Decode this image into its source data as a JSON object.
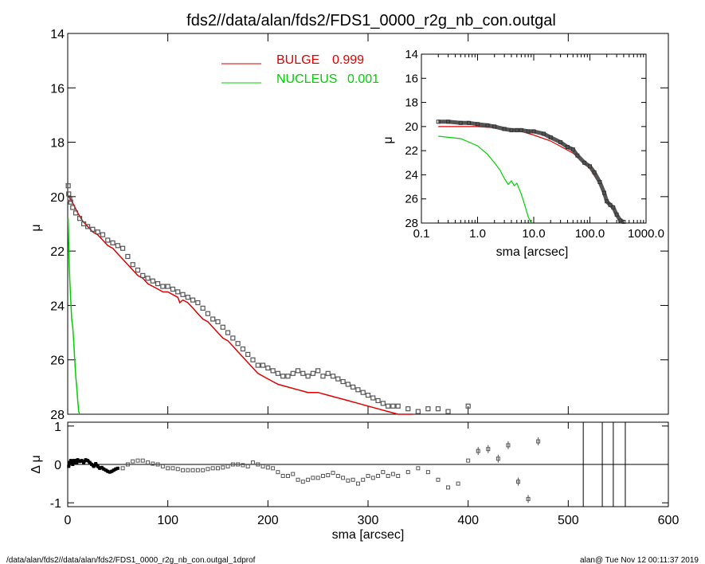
{
  "title": "fds2//data/alan/fds2/FDS1_0000_r2g_nb_con.outgal",
  "footer_left": "/data/alan/fds2//data/alan/fds2/FDS1_0000_r2g_nb_con.outgal_1dprof",
  "footer_right": "alan@  Tue Nov 12 00:11:37 2019",
  "colors": {
    "bulge": "#e00000",
    "nucleus": "#00d000",
    "data": "#555555",
    "axes": "#000000"
  },
  "chart_data": [
    {
      "id": "main",
      "type": "line",
      "ylabel": "μ",
      "xlim": [
        0,
        600
      ],
      "ylim": [
        28,
        14
      ],
      "yticks": [
        "14",
        "16",
        "18",
        "20",
        "22",
        "24",
        "26",
        "28"
      ],
      "legend": [
        {
          "name": "BULGE",
          "value": "0.999",
          "color": "#e00000"
        },
        {
          "name": "NUCLEUS",
          "value": "0.001",
          "color": "#00d000"
        }
      ],
      "legend_placement": "top-center",
      "series": [
        {
          "name": "BULGE",
          "style": "line",
          "x": [
            1,
            3,
            6,
            10,
            15,
            20,
            25,
            30,
            35,
            40,
            45,
            50,
            55,
            60,
            65,
            70,
            75,
            80,
            85,
            90,
            95,
            100,
            105,
            110,
            112,
            115,
            120,
            125,
            130,
            135,
            140,
            145,
            150,
            155,
            160,
            165,
            170,
            175,
            180,
            185,
            190,
            200,
            210,
            220,
            230,
            240,
            250,
            260,
            270,
            280,
            290,
            300,
            310,
            320,
            330,
            340,
            345
          ],
          "values": [
            20.0,
            20.1,
            20.3,
            20.6,
            20.9,
            21.1,
            21.3,
            21.4,
            21.6,
            21.8,
            21.9,
            22.1,
            22.3,
            22.5,
            22.7,
            22.9,
            23.0,
            23.2,
            23.3,
            23.4,
            23.5,
            23.5,
            23.6,
            23.7,
            23.9,
            23.8,
            23.9,
            24.1,
            24.3,
            24.5,
            24.6,
            24.8,
            25.0,
            25.2,
            25.3,
            25.5,
            25.7,
            25.9,
            26.1,
            26.3,
            26.5,
            26.7,
            26.9,
            27.0,
            27.1,
            27.2,
            27.2,
            27.3,
            27.4,
            27.5,
            27.6,
            27.7,
            27.8,
            27.9,
            28.0,
            28.0,
            28.0
          ]
        },
        {
          "name": "NUCLEUS",
          "style": "line",
          "x": [
            0.5,
            1,
            1.5,
            2,
            3,
            4,
            5,
            6,
            7,
            8,
            9,
            10,
            11,
            12
          ],
          "values": [
            20.8,
            21.8,
            22.5,
            23.0,
            23.8,
            24.5,
            24.8,
            25.3,
            26.0,
            26.6,
            27.0,
            27.5,
            27.9,
            28.0
          ]
        },
        {
          "name": "data",
          "style": "squares",
          "x": [
            0.5,
            1,
            2,
            3,
            5,
            8,
            12,
            16,
            20,
            25,
            30,
            35,
            40,
            45,
            50,
            55,
            60,
            65,
            70,
            75,
            80,
            85,
            90,
            95,
            100,
            105,
            110,
            115,
            120,
            125,
            130,
            135,
            140,
            145,
            150,
            155,
            160,
            165,
            170,
            175,
            180,
            185,
            190,
            195,
            200,
            205,
            210,
            215,
            220,
            225,
            230,
            235,
            240,
            245,
            250,
            255,
            260,
            265,
            270,
            275,
            280,
            285,
            290,
            295,
            300,
            305,
            310,
            315,
            320,
            325,
            330,
            340,
            350,
            360,
            370,
            380,
            400
          ],
          "values": [
            19.6,
            19.9,
            20.1,
            20.2,
            20.4,
            20.6,
            20.8,
            21.0,
            21.1,
            21.2,
            21.3,
            21.4,
            21.6,
            21.7,
            21.8,
            21.9,
            22.2,
            22.5,
            22.7,
            22.9,
            23.0,
            23.1,
            23.2,
            23.3,
            23.3,
            23.4,
            23.5,
            23.6,
            23.7,
            23.8,
            23.9,
            24.1,
            24.3,
            24.5,
            24.6,
            24.8,
            25.0,
            25.2,
            25.4,
            25.6,
            25.8,
            26.0,
            26.2,
            26.2,
            26.3,
            26.4,
            26.5,
            26.6,
            26.6,
            26.5,
            26.4,
            26.5,
            26.6,
            26.5,
            26.4,
            26.6,
            26.5,
            26.6,
            26.7,
            26.8,
            26.9,
            27.0,
            27.1,
            27.2,
            27.3,
            27.4,
            27.5,
            27.6,
            27.7,
            27.7,
            27.7,
            27.8,
            27.9,
            27.8,
            27.8,
            27.9,
            27.7
          ]
        }
      ]
    },
    {
      "id": "inset",
      "type": "line",
      "xscale": "log",
      "xlabel": "sma [arcsec]",
      "ylabel": "μ",
      "xlim": [
        0.1,
        1000
      ],
      "ylim": [
        28,
        14
      ],
      "xticks": [
        "0.1",
        "1.0",
        "10.0",
        "100.0",
        "1000.0"
      ],
      "yticks": [
        "14",
        "16",
        "18",
        "20",
        "22",
        "24",
        "26",
        "28"
      ],
      "series": [
        {
          "name": "BULGE",
          "x": [
            0.2,
            0.5,
            1,
            2,
            5,
            10,
            20,
            50,
            100,
            150,
            200,
            300,
            350
          ],
          "values": [
            20.0,
            20.0,
            20.0,
            20.1,
            20.3,
            20.7,
            21.2,
            22.2,
            23.5,
            24.8,
            26.0,
            27.3,
            28.0
          ]
        },
        {
          "name": "NUCLEUS",
          "x": [
            0.2,
            0.5,
            1,
            1.5,
            2,
            2.5,
            3,
            3.5,
            4,
            4.5,
            5,
            6,
            7,
            8,
            9
          ],
          "values": [
            20.8,
            21.0,
            21.6,
            22.3,
            23.0,
            23.6,
            24.3,
            24.8,
            24.5,
            24.9,
            24.7,
            25.6,
            26.6,
            27.5,
            28.0
          ]
        },
        {
          "name": "data",
          "x": [
            0.2,
            0.3,
            0.5,
            0.7,
            1,
            1.5,
            2,
            3,
            4,
            5,
            6,
            8,
            10,
            15,
            20,
            30,
            40,
            50,
            60,
            80,
            100,
            120,
            150,
            180,
            200,
            230,
            260,
            300,
            350,
            400
          ],
          "values": [
            19.6,
            19.6,
            19.7,
            19.7,
            19.8,
            19.9,
            20.0,
            20.2,
            20.3,
            20.3,
            20.3,
            20.4,
            20.4,
            20.6,
            20.9,
            21.3,
            21.7,
            21.9,
            22.4,
            23.0,
            23.3,
            23.8,
            24.6,
            25.5,
            26.2,
            26.5,
            26.7,
            27.3,
            27.8,
            27.9
          ]
        }
      ]
    },
    {
      "id": "residual",
      "type": "scatter",
      "xlabel": "sma [arcsec]",
      "ylabel": "Δ μ",
      "xlim": [
        0,
        600
      ],
      "ylim": [
        -1.1,
        1.1
      ],
      "xticks": [
        "0",
        "100",
        "200",
        "300",
        "400",
        "500",
        "600"
      ],
      "yticks": [
        "1",
        "0",
        "-1"
      ],
      "zero_line": true,
      "vertical_lines_x": [
        515,
        534,
        545,
        557
      ],
      "series": [
        {
          "name": "residual-dense",
          "style": "filled",
          "x": [
            1,
            2,
            3,
            4,
            5,
            6,
            7,
            8,
            9,
            10,
            12,
            14,
            16,
            18,
            20,
            22,
            24,
            26,
            28,
            30,
            32,
            34,
            36,
            38,
            40,
            42,
            44,
            46,
            48,
            50
          ],
          "values": [
            -0.05,
            0.05,
            0.1,
            0.05,
            0.0,
            0.1,
            0.05,
            0.1,
            0.05,
            0.12,
            0.08,
            0.1,
            0.05,
            0.12,
            0.1,
            0.05,
            0.0,
            -0.05,
            0.02,
            -0.05,
            -0.1,
            -0.08,
            -0.12,
            -0.15,
            -0.18,
            -0.2,
            -0.18,
            -0.15,
            -0.12,
            -0.1
          ]
        },
        {
          "name": "residual-sparse",
          "style": "squares",
          "x": [
            55,
            60,
            65,
            70,
            75,
            80,
            85,
            90,
            95,
            100,
            105,
            110,
            115,
            120,
            125,
            130,
            135,
            140,
            145,
            150,
            155,
            160,
            165,
            170,
            175,
            180,
            185,
            190,
            195,
            200,
            205,
            210,
            215,
            220,
            225,
            230,
            235,
            240,
            245,
            250,
            255,
            260,
            265,
            270,
            275,
            280,
            285,
            290,
            295,
            300,
            305,
            310,
            315,
            320,
            325,
            330,
            340,
            350,
            360,
            370,
            380,
            390,
            400,
            410,
            420,
            430,
            440,
            450,
            460,
            470
          ],
          "values": [
            -0.1,
            0.0,
            0.08,
            0.1,
            0.1,
            0.05,
            0.02,
            0.0,
            -0.05,
            -0.1,
            -0.1,
            -0.12,
            -0.15,
            -0.15,
            -0.15,
            -0.15,
            -0.15,
            -0.12,
            -0.1,
            -0.1,
            -0.08,
            -0.05,
            0.0,
            0.0,
            -0.02,
            -0.05,
            0.05,
            0.0,
            -0.05,
            -0.08,
            -0.1,
            -0.2,
            -0.3,
            -0.3,
            -0.25,
            -0.4,
            -0.45,
            -0.4,
            -0.35,
            -0.35,
            -0.3,
            -0.28,
            -0.22,
            -0.3,
            -0.35,
            -0.42,
            -0.4,
            -0.5,
            -0.4,
            -0.3,
            -0.35,
            -0.3,
            -0.2,
            -0.3,
            -0.25,
            -0.3,
            -0.2,
            -0.1,
            -0.2,
            -0.4,
            -0.6,
            -0.5,
            0.1,
            0.35,
            0.4,
            0.15,
            0.5,
            -0.45,
            -0.9,
            0.6
          ]
        }
      ]
    }
  ]
}
